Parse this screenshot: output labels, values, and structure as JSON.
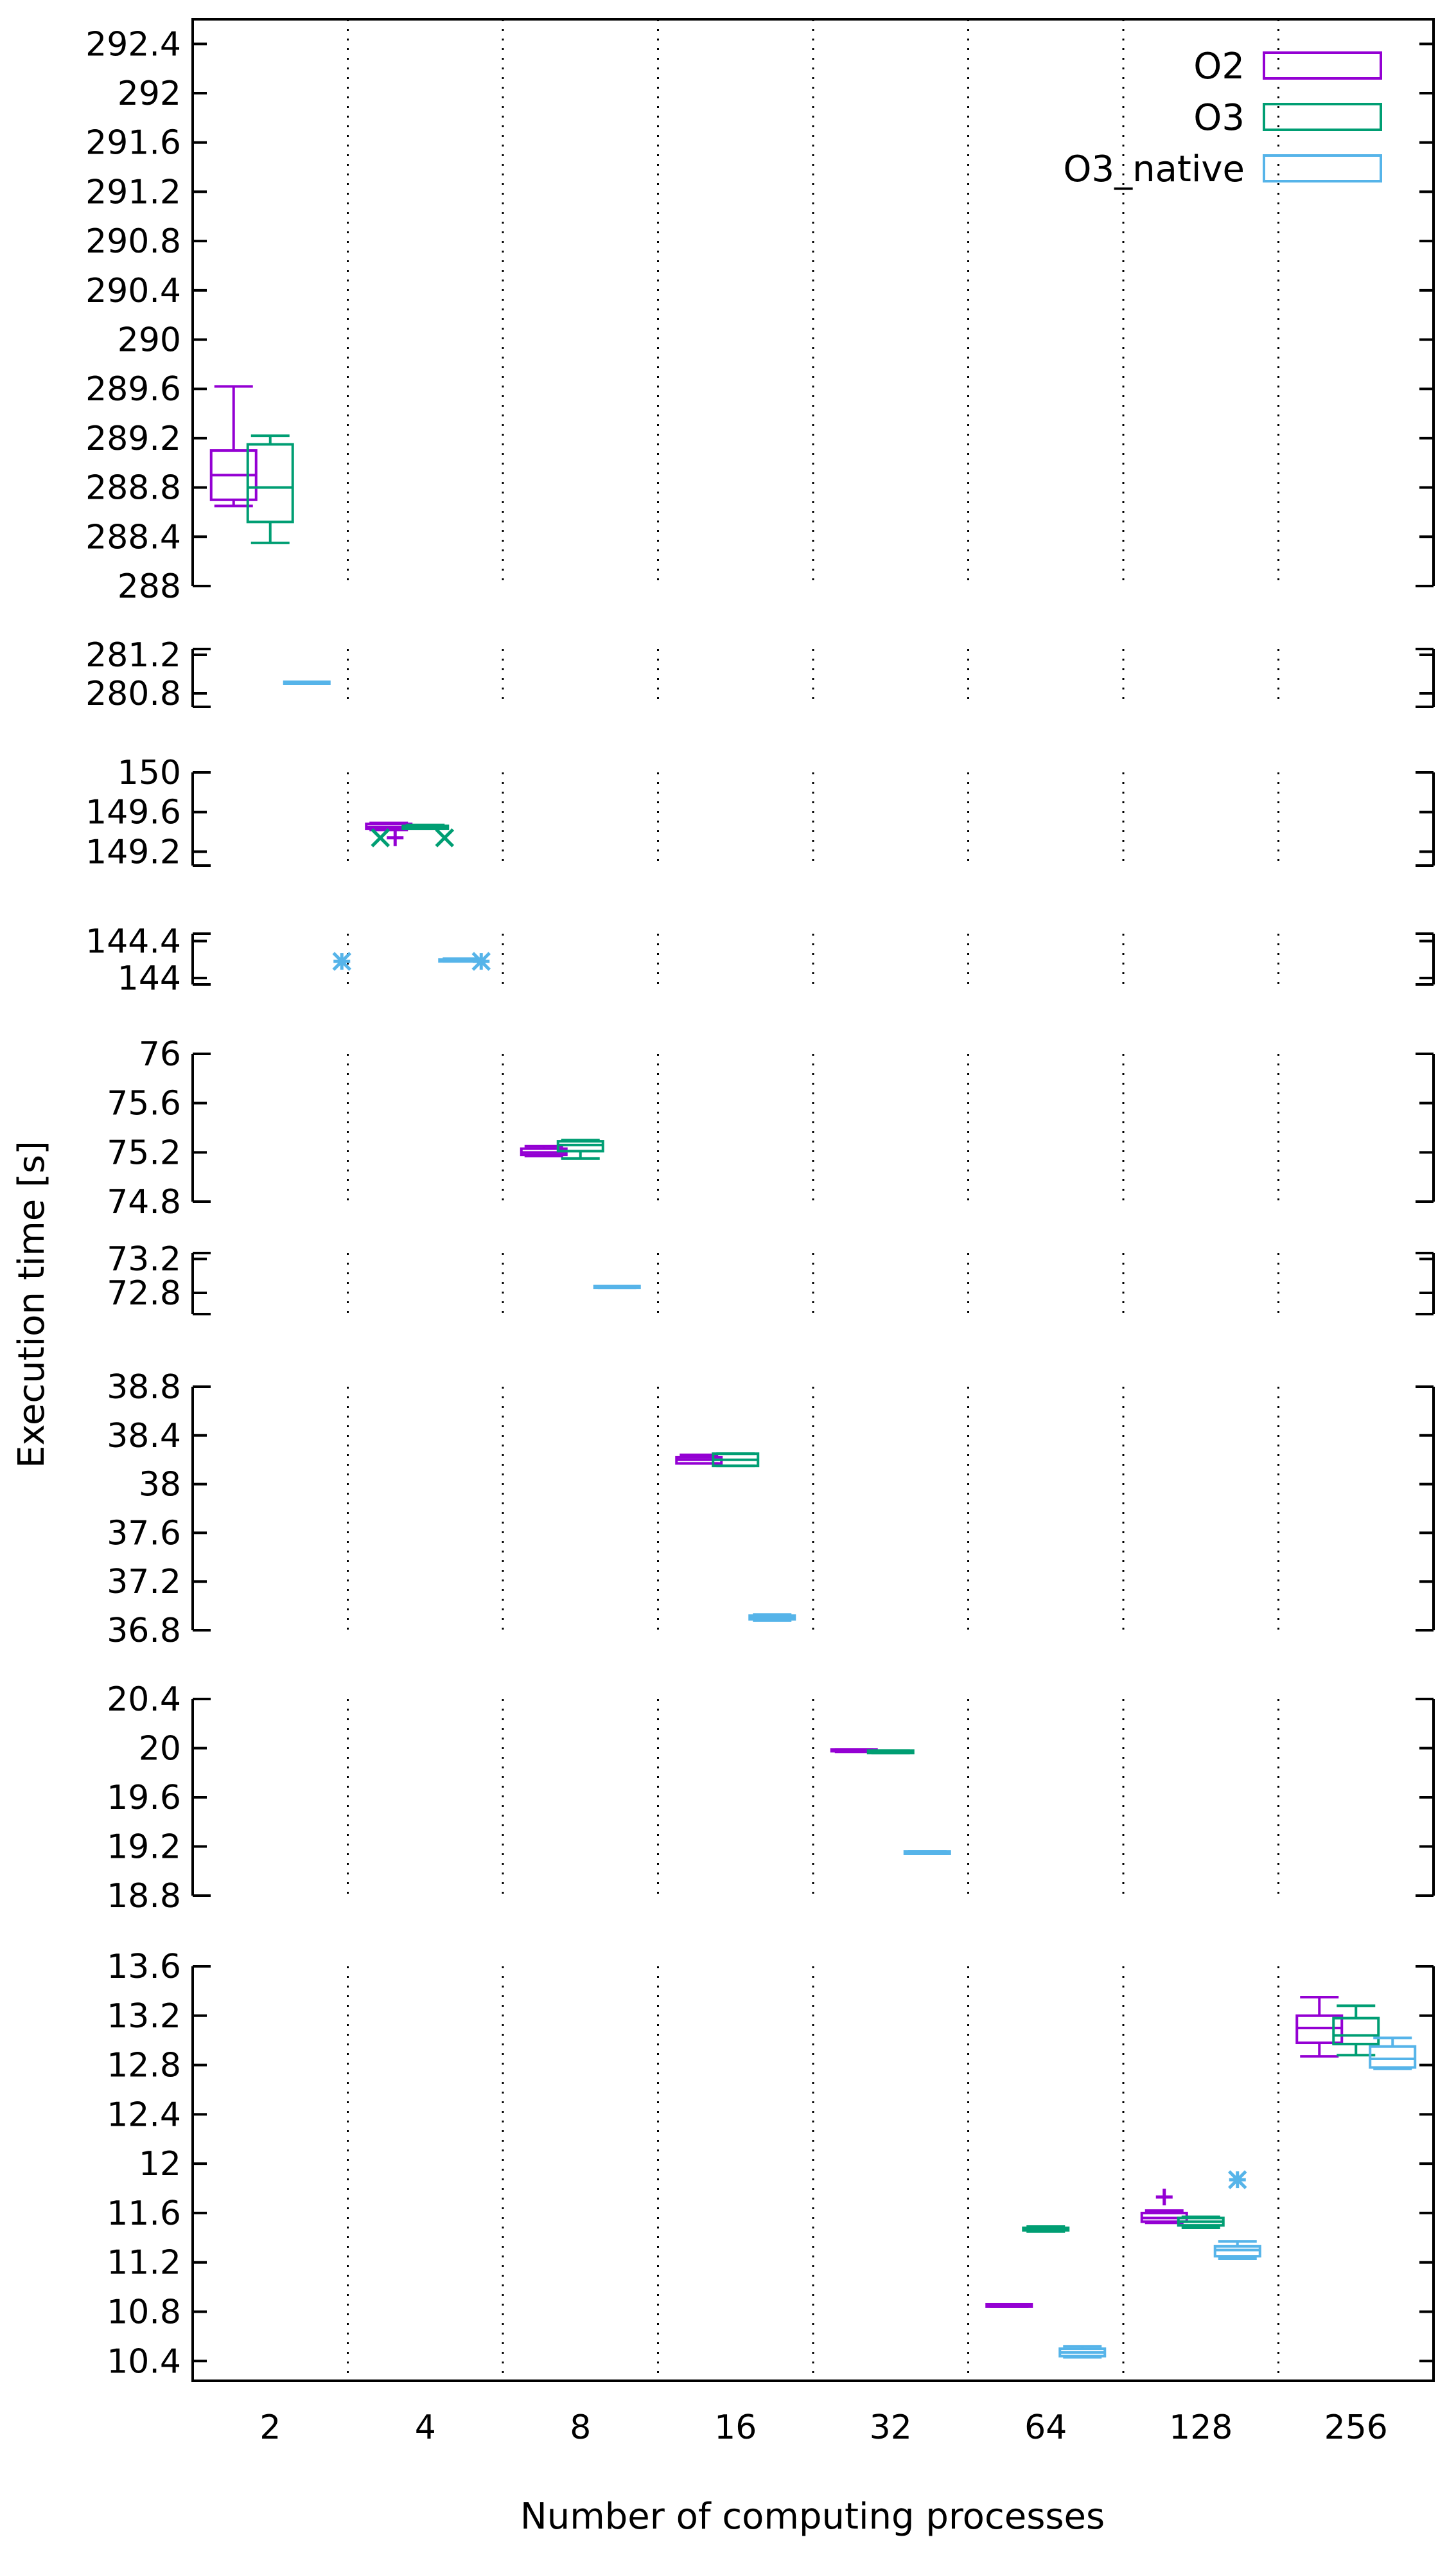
{
  "chart_data": {
    "type": "box",
    "title": "",
    "xlabel": "Number of computing processes",
    "ylabel": "Execution time [s]",
    "categories": [
      "2",
      "4",
      "8",
      "16",
      "32",
      "64",
      "128",
      "256"
    ],
    "legend": {
      "placement": "top-right",
      "entries": [
        {
          "name": "O2",
          "color": "#9400d3"
        },
        {
          "name": "O3",
          "color": "#009e73"
        },
        {
          "name": "O3_native",
          "color": "#56b4e9"
        }
      ]
    },
    "panels": [
      {
        "ylim": [
          288,
          292.6
        ],
        "ticks": [
          "292.4",
          "292",
          "291.6",
          "291.2",
          "290.8",
          "290.4",
          "290",
          "289.6",
          "289.2",
          "288.8",
          "288.4",
          "288"
        ]
      },
      {
        "ylim": [
          280.66,
          281.26
        ],
        "ticks": [
          "281.2",
          "280.8"
        ]
      },
      {
        "ylim": [
          149.06,
          150
        ],
        "ticks": [
          "150",
          "149.6",
          "149.2"
        ]
      },
      {
        "ylim": [
          143.93,
          144.48
        ],
        "ticks": [
          "144.4",
          "144"
        ]
      },
      {
        "ylim": [
          74.8,
          76
        ],
        "ticks": [
          "76",
          "75.6",
          "75.2",
          "74.8"
        ]
      },
      {
        "ylim": [
          72.55,
          73.27
        ],
        "ticks": [
          "73.2",
          "72.8"
        ]
      },
      {
        "ylim": [
          36.8,
          38.8
        ],
        "ticks": [
          "38.8",
          "38.4",
          "38",
          "37.6",
          "37.2",
          "36.8"
        ]
      },
      {
        "ylim": [
          18.8,
          20.4
        ],
        "ticks": [
          "20.4",
          "20",
          "19.6",
          "19.2",
          "18.8"
        ]
      },
      {
        "ylim": [
          10.24,
          13.6
        ],
        "ticks": [
          "13.6",
          "13.2",
          "12.8",
          "12.4",
          "12",
          "11.6",
          "11.2",
          "10.8",
          "10.4"
        ]
      }
    ],
    "boxes": [
      {
        "category": "2",
        "series": "O2",
        "panel": 0,
        "whisker_low": 288.65,
        "q1": 288.7,
        "median": 288.9,
        "q3": 289.1,
        "whisker_high": 289.62,
        "outliers": []
      },
      {
        "category": "2",
        "series": "O3",
        "panel": 0,
        "whisker_low": 288.35,
        "q1": 288.52,
        "median": 288.8,
        "q3": 289.15,
        "whisker_high": 289.22,
        "outliers": []
      },
      {
        "category": "2",
        "series": "O3_native",
        "panel": 1,
        "whisker_low": 280.9,
        "q1": 280.9,
        "median": 280.91,
        "q3": 280.92,
        "whisker_high": 280.92,
        "outliers": []
      },
      {
        "category": "4",
        "series": "O2",
        "panel": 2,
        "whisker_low": 149.42,
        "q1": 149.43,
        "median": 149.45,
        "q3": 149.48,
        "whisker_high": 149.49,
        "outliers": [
          149.34
        ]
      },
      {
        "category": "4",
        "series": "O3",
        "panel": 2,
        "whisker_low": 149.43,
        "q1": 149.43,
        "median": 149.44,
        "q3": 149.46,
        "whisker_high": 149.47,
        "outliers": [
          149.34,
          149.34
        ]
      },
      {
        "category": "4",
        "series": "O3_native",
        "panel": 3,
        "whisker_low": 144.18,
        "q1": 144.18,
        "median": 144.19,
        "q3": 144.2,
        "whisker_high": 144.21,
        "outliers": [
          144.18,
          144.18
        ]
      },
      {
        "category": "8",
        "series": "O2",
        "panel": 4,
        "whisker_low": 75.17,
        "q1": 75.18,
        "median": 75.2,
        "q3": 75.23,
        "whisker_high": 75.25,
        "outliers": []
      },
      {
        "category": "8",
        "series": "O3",
        "panel": 4,
        "whisker_low": 75.15,
        "q1": 75.21,
        "median": 75.26,
        "q3": 75.29,
        "whisker_high": 75.3,
        "outliers": []
      },
      {
        "category": "8",
        "series": "O3_native",
        "panel": 5,
        "whisker_low": 72.86,
        "q1": 72.86,
        "median": 72.87,
        "q3": 72.88,
        "whisker_high": 72.88,
        "outliers": []
      },
      {
        "category": "16",
        "series": "O2",
        "panel": 6,
        "whisker_low": 38.17,
        "q1": 38.17,
        "median": 38.2,
        "q3": 38.22,
        "whisker_high": 38.24,
        "outliers": []
      },
      {
        "category": "16",
        "series": "O3",
        "panel": 6,
        "whisker_low": 38.15,
        "q1": 38.15,
        "median": 38.2,
        "q3": 38.25,
        "whisker_high": 38.25,
        "outliers": []
      },
      {
        "category": "16",
        "series": "O3_native",
        "panel": 6,
        "whisker_low": 36.88,
        "q1": 36.89,
        "median": 36.9,
        "q3": 36.92,
        "whisker_high": 36.93,
        "outliers": []
      },
      {
        "category": "32",
        "series": "O2",
        "panel": 7,
        "whisker_low": 19.97,
        "q1": 19.975,
        "median": 19.98,
        "q3": 19.99,
        "whisker_high": 19.99,
        "outliers": []
      },
      {
        "category": "32",
        "series": "O3",
        "panel": 7,
        "whisker_low": 19.96,
        "q1": 19.96,
        "median": 19.97,
        "q3": 19.98,
        "whisker_high": 19.98,
        "outliers": []
      },
      {
        "category": "32",
        "series": "O3_native",
        "panel": 7,
        "whisker_low": 19.14,
        "q1": 19.14,
        "median": 19.15,
        "q3": 19.16,
        "whisker_high": 19.16,
        "outliers": []
      },
      {
        "category": "64",
        "series": "O2",
        "panel": 8,
        "whisker_low": 10.84,
        "q1": 10.84,
        "median": 10.85,
        "q3": 10.86,
        "whisker_high": 10.86,
        "outliers": []
      },
      {
        "category": "64",
        "series": "O3",
        "panel": 8,
        "whisker_low": 11.45,
        "q1": 11.46,
        "median": 11.47,
        "q3": 11.48,
        "whisker_high": 11.49,
        "outliers": []
      },
      {
        "category": "64",
        "series": "O3_native",
        "panel": 8,
        "whisker_low": 10.43,
        "q1": 10.44,
        "median": 10.47,
        "q3": 10.5,
        "whisker_high": 10.52,
        "outliers": []
      },
      {
        "category": "128",
        "series": "O2",
        "panel": 8,
        "whisker_low": 11.52,
        "q1": 11.53,
        "median": 11.56,
        "q3": 11.6,
        "whisker_high": 11.62,
        "outliers": [
          11.73
        ]
      },
      {
        "category": "128",
        "series": "O3",
        "panel": 8,
        "whisker_low": 11.48,
        "q1": 11.5,
        "median": 11.53,
        "q3": 11.56,
        "whisker_high": 11.57,
        "outliers": []
      },
      {
        "category": "128",
        "series": "O3_native",
        "panel": 8,
        "whisker_low": 11.23,
        "q1": 11.25,
        "median": 11.3,
        "q3": 11.33,
        "whisker_high": 11.37,
        "outliers": [
          11.87
        ]
      },
      {
        "category": "256",
        "series": "O2",
        "panel": 8,
        "whisker_low": 12.87,
        "q1": 12.98,
        "median": 13.1,
        "q3": 13.2,
        "whisker_high": 13.35,
        "outliers": []
      },
      {
        "category": "256",
        "series": "O3",
        "panel": 8,
        "whisker_low": 12.88,
        "q1": 12.97,
        "median": 13.04,
        "q3": 13.18,
        "whisker_high": 13.28,
        "outliers": []
      },
      {
        "category": "256",
        "series": "O3_native",
        "panel": 8,
        "whisker_low": 12.77,
        "q1": 12.78,
        "median": 12.85,
        "q3": 12.95,
        "whisker_high": 13.02,
        "outliers": []
      }
    ]
  }
}
